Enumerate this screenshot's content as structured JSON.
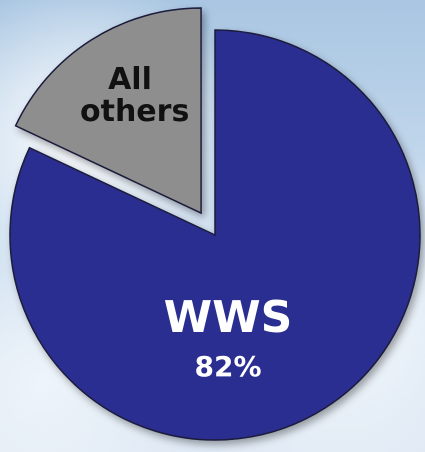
{
  "chart_data": {
    "type": "pie",
    "categories": [
      "WWS",
      "All others"
    ],
    "values": [
      82,
      18
    ],
    "value_labels": [
      "82%",
      null
    ],
    "colors": [
      "#2c2f90",
      "#8e8e8e"
    ]
  }
}
